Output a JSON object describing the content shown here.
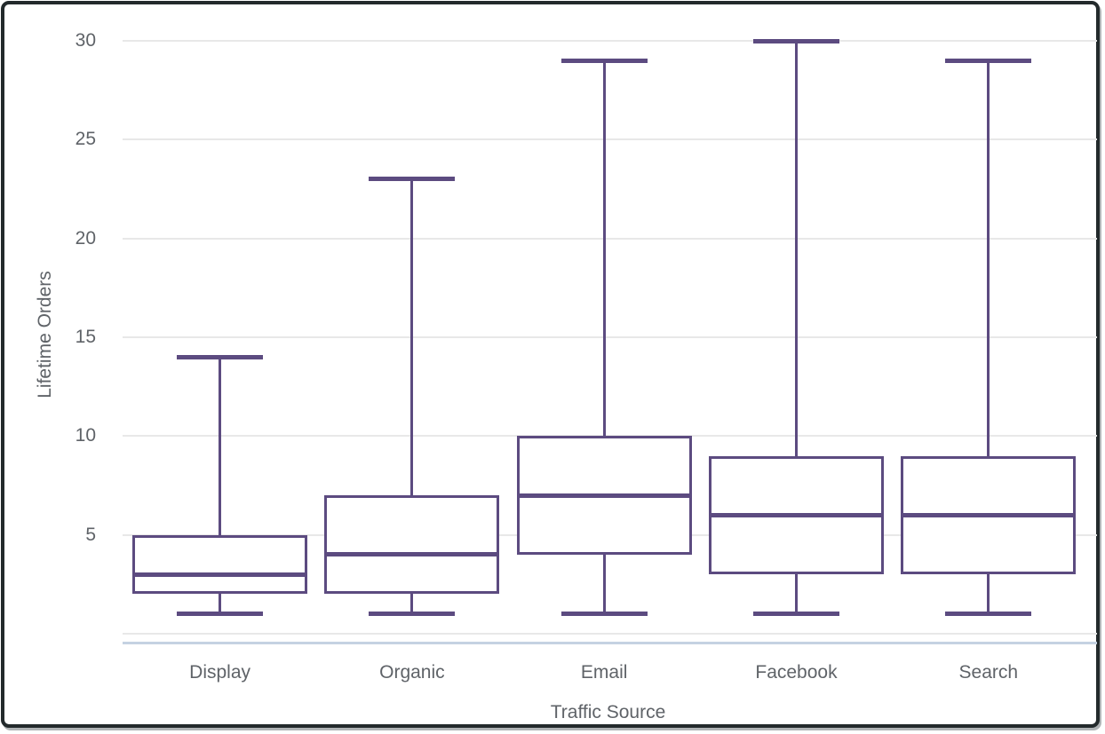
{
  "chart_data": {
    "type": "boxplot",
    "title": "",
    "xlabel": "Traffic Source",
    "ylabel": "Lifetime Orders",
    "categories": [
      "Display",
      "Organic",
      "Email",
      "Facebook",
      "Search"
    ],
    "boxes": [
      {
        "category": "Display",
        "whisker_low": 1,
        "q1": 2,
        "median": 3,
        "q3": 5,
        "whisker_high": 14
      },
      {
        "category": "Organic",
        "whisker_low": 1,
        "q1": 2,
        "median": 4,
        "q3": 7,
        "whisker_high": 23
      },
      {
        "category": "Email",
        "whisker_low": 1,
        "q1": 4,
        "median": 7,
        "q3": 10,
        "whisker_high": 29
      },
      {
        "category": "Facebook",
        "whisker_low": 1,
        "q1": 3,
        "median": 6,
        "q3": 9,
        "whisker_high": 30
      },
      {
        "category": "Search",
        "whisker_low": 1,
        "q1": 3,
        "median": 6,
        "q3": 9,
        "whisker_high": 29
      }
    ],
    "yticks": [
      5,
      10,
      15,
      20,
      25,
      30
    ],
    "gridline_values": [
      0,
      5,
      10,
      15,
      20,
      25,
      30
    ],
    "ylim": [
      0,
      31.2
    ],
    "grid": true,
    "legend": false,
    "colors": {
      "box_stroke": "#5c4b80",
      "gridline": "#e8e8e8",
      "axis_line": "#c5d2e2",
      "text": "#5f6368",
      "card_border": "#232a2c"
    }
  }
}
